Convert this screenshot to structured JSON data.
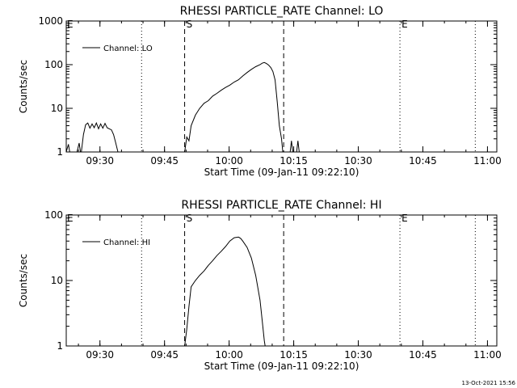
{
  "footer": {
    "timestamp": "13-Oct-2021 15:56"
  },
  "chart_data": [
    {
      "type": "line",
      "title": "RHESSI PARTICLE_RATE Channel: LO",
      "xlabel": "Start Time (09-Jan-11 09:22:10)",
      "ylabel": "Counts/sec",
      "yscale": "log",
      "xunits": "minutes since 09:22:10",
      "xlim": [
        0,
        100
      ],
      "ylim": [
        1,
        1000
      ],
      "x_ticks": [
        {
          "value": 7.83,
          "label": "09:30"
        },
        {
          "value": 22.83,
          "label": "09:45"
        },
        {
          "value": 37.83,
          "label": "10:00"
        },
        {
          "value": 52.83,
          "label": "10:15"
        },
        {
          "value": 67.83,
          "label": "10:30"
        },
        {
          "value": 82.83,
          "label": "10:45"
        },
        {
          "value": 97.83,
          "label": "11:00"
        }
      ],
      "y_ticks": [
        {
          "value": 1,
          "label": "1"
        },
        {
          "value": 10,
          "label": "10"
        },
        {
          "value": 100,
          "label": "100"
        },
        {
          "value": 1000,
          "label": "1000"
        }
      ],
      "legend": {
        "placement": "top-left",
        "entries": [
          "Channel: LO"
        ]
      },
      "markers": [
        {
          "x": 17.5,
          "style": "dotted",
          "label": ""
        },
        {
          "x": 27.5,
          "style": "dashed",
          "label": "S"
        },
        {
          "x": 50.5,
          "style": "dashed",
          "label": ""
        },
        {
          "x": 77.5,
          "style": "dotted",
          "label": "E"
        },
        {
          "x": 95.0,
          "style": "dotted",
          "label": ""
        }
      ],
      "corner_marker": {
        "label": "E",
        "x": 0
      },
      "series": [
        {
          "name": "Channel: LO",
          "segments": [
            [
              [
                0,
                1
              ],
              [
                0.5,
                1.5
              ],
              [
                0.8,
                1
              ]
            ],
            [
              [
                2.5,
                1
              ],
              [
                3,
                1.6
              ],
              [
                3.3,
                1
              ]
            ],
            [
              [
                3.5,
                1
              ],
              [
                4,
                2.5
              ],
              [
                4.5,
                4.2
              ],
              [
                5,
                4.6
              ],
              [
                5.5,
                3.5
              ],
              [
                6,
                4.4
              ],
              [
                6.5,
                3.6
              ],
              [
                7,
                4.6
              ],
              [
                7.5,
                3.4
              ],
              [
                8,
                4.4
              ],
              [
                8.5,
                3.5
              ],
              [
                9,
                4.5
              ],
              [
                9.5,
                3.6
              ],
              [
                10.5,
                3.2
              ],
              [
                11,
                2.5
              ],
              [
                11.5,
                1.6
              ],
              [
                12,
                1
              ]
            ],
            [
              [
                27.5,
                1
              ],
              [
                28,
                2.2
              ],
              [
                28.5,
                1.8
              ],
              [
                29,
                4
              ],
              [
                30,
                7
              ],
              [
                31,
                10
              ],
              [
                32,
                13
              ],
              [
                33,
                15
              ],
              [
                34,
                19
              ],
              [
                35,
                22
              ],
              [
                36,
                26
              ],
              [
                37,
                30
              ],
              [
                38,
                34
              ],
              [
                39,
                40
              ],
              [
                40,
                45
              ],
              [
                41,
                55
              ],
              [
                42,
                66
              ],
              [
                43,
                78
              ],
              [
                44,
                90
              ],
              [
                45,
                100
              ],
              [
                45.5,
                108
              ],
              [
                46,
                112
              ],
              [
                46.5,
                106
              ],
              [
                47,
                98
              ],
              [
                47.5,
                86
              ],
              [
                48,
                70
              ],
              [
                48.5,
                45
              ],
              [
                49,
                14
              ],
              [
                49.5,
                4
              ],
              [
                50,
                2
              ],
              [
                50.3,
                1
              ]
            ],
            [
              [
                52,
                1
              ],
              [
                52.3,
                1.8
              ],
              [
                52.6,
                1
              ]
            ],
            [
              [
                53.5,
                1
              ],
              [
                53.8,
                1.8
              ],
              [
                54.1,
                1
              ]
            ]
          ]
        }
      ]
    },
    {
      "type": "line",
      "title": "RHESSI PARTICLE_RATE Channel: HI",
      "xlabel": "Start Time (09-Jan-11 09:22:10)",
      "ylabel": "Counts/sec",
      "yscale": "log",
      "xunits": "minutes since 09:22:10",
      "xlim": [
        0,
        100
      ],
      "ylim": [
        1,
        100
      ],
      "x_ticks": [
        {
          "value": 7.83,
          "label": "09:30"
        },
        {
          "value": 22.83,
          "label": "09:45"
        },
        {
          "value": 37.83,
          "label": "10:00"
        },
        {
          "value": 52.83,
          "label": "10:15"
        },
        {
          "value": 67.83,
          "label": "10:30"
        },
        {
          "value": 82.83,
          "label": "10:45"
        },
        {
          "value": 97.83,
          "label": "11:00"
        }
      ],
      "y_ticks": [
        {
          "value": 1,
          "label": "1"
        },
        {
          "value": 10,
          "label": "10"
        },
        {
          "value": 100,
          "label": "100"
        }
      ],
      "legend": {
        "placement": "top-left",
        "entries": [
          "Channel: HI"
        ]
      },
      "markers": [
        {
          "x": 17.5,
          "style": "dotted",
          "label": ""
        },
        {
          "x": 27.5,
          "style": "dashed",
          "label": "S"
        },
        {
          "x": 50.5,
          "style": "dashed",
          "label": ""
        },
        {
          "x": 77.5,
          "style": "dotted",
          "label": "E"
        },
        {
          "x": 95.0,
          "style": "dotted",
          "label": ""
        }
      ],
      "corner_marker": {
        "label": "E",
        "x": 0
      },
      "series": [
        {
          "name": "Channel: HI",
          "segments": [
            [
              [
                27.5,
                1
              ],
              [
                28,
                1.8
              ],
              [
                28.5,
                4
              ],
              [
                29,
                8
              ],
              [
                30,
                10
              ],
              [
                31,
                12
              ],
              [
                32,
                14
              ],
              [
                33,
                17
              ],
              [
                34,
                20
              ],
              [
                35,
                24
              ],
              [
                36,
                28
              ],
              [
                37,
                33
              ],
              [
                38,
                40
              ],
              [
                39,
                45
              ],
              [
                40,
                46
              ],
              [
                40.5,
                44
              ],
              [
                41,
                40
              ],
              [
                42,
                32
              ],
              [
                43,
                22
              ],
              [
                44,
                12
              ],
              [
                45,
                5
              ],
              [
                45.5,
                2.5
              ],
              [
                46,
                1.2
              ],
              [
                46.2,
                1
              ]
            ]
          ]
        }
      ]
    }
  ]
}
